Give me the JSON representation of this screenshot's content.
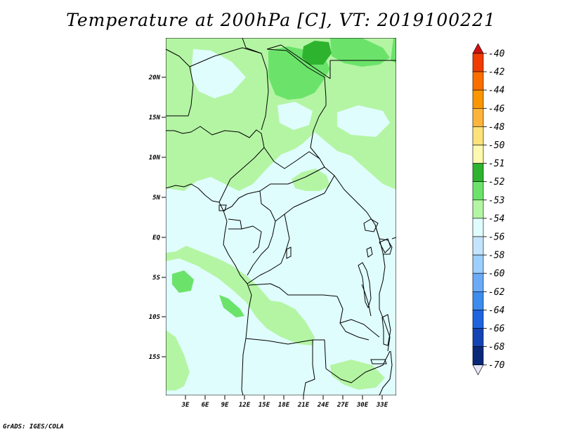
{
  "title": "Temperature at 200hPa [C], VT: 2019100221",
  "credit": "GrADS: IGES/COLA",
  "map": {
    "region": "Central Africa",
    "lat_labels": [
      "20N",
      "15N",
      "10N",
      "5N",
      "EQ",
      "5S",
      "10S",
      "15S"
    ],
    "lon_labels": [
      "3E",
      "6E",
      "9E",
      "12E",
      "15E",
      "18E",
      "21E",
      "24E",
      "27E",
      "30E",
      "33E"
    ],
    "field": "Temperature at 200hPa",
    "unit": "C"
  },
  "colorbar": {
    "labels": [
      "-40",
      "-42",
      "-44",
      "-46",
      "-48",
      "-50",
      "-51",
      "-52",
      "-53",
      "-54",
      "-56",
      "-58",
      "-60",
      "-62",
      "-64",
      "-66",
      "-68",
      "-70"
    ],
    "colors": [
      "#d01010",
      "#f03c00",
      "#fa6e00",
      "#fa9600",
      "#fdb43c",
      "#fde27a",
      "#fdfab0",
      "#2eb32e",
      "#6be36b",
      "#b4f5a4",
      "#e0fdfd",
      "#c4e4fd",
      "#9ccffd",
      "#6aaaf8",
      "#3c8ced",
      "#1e64e0",
      "#1444b4",
      "#0a2878",
      "#e6e6fa"
    ]
  }
}
